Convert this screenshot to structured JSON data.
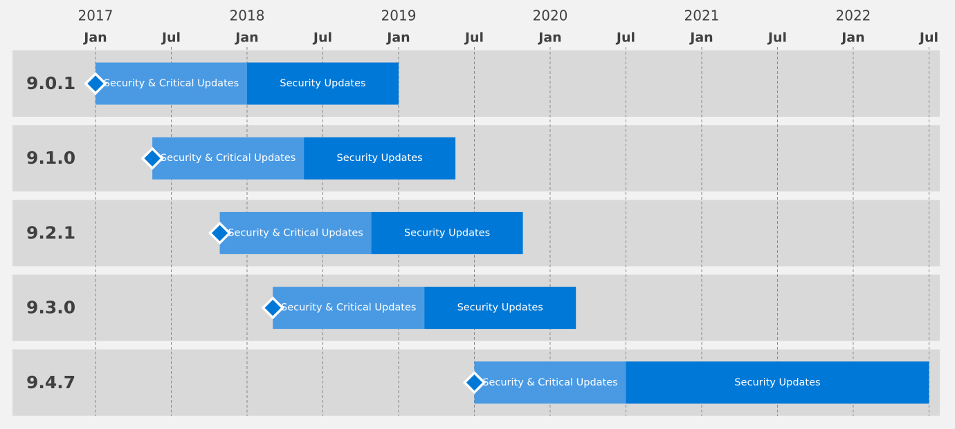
{
  "chart_data": {
    "type": "gantt",
    "xlim": [
      2016.452,
      2022.571
    ],
    "xticks": [
      {
        "value": 2017,
        "label": "Jan"
      },
      {
        "value": 2017.5,
        "label": "Jul"
      },
      {
        "value": 2018,
        "label": "Jan"
      },
      {
        "value": 2018.5,
        "label": "Jul"
      },
      {
        "value": 2019,
        "label": "Jan"
      },
      {
        "value": 2019.5,
        "label": "Jul"
      },
      {
        "value": 2020,
        "label": "Jan"
      },
      {
        "value": 2020.5,
        "label": "Jul"
      },
      {
        "value": 2021,
        "label": "Jan"
      },
      {
        "value": 2021.5,
        "label": "Jul"
      },
      {
        "value": 2022,
        "label": "Jan"
      },
      {
        "value": 2022.5,
        "label": "Jul"
      }
    ],
    "year_ticks": [
      2017,
      2018,
      2019,
      2020,
      2021,
      2022
    ],
    "grid": true,
    "rows": [
      {
        "name": "9.0.1",
        "segments": [
          {
            "label": "Security & Critical Updates",
            "start": 2017.0,
            "end": 2018.0,
            "color": "#4a9ae3"
          },
          {
            "label": "Security Updates",
            "start": 2018.0,
            "end": 2019.0,
            "color": "#0078d7"
          }
        ]
      },
      {
        "name": "9.1.0",
        "segments": [
          {
            "label": "Security & Critical Updates",
            "start": 2017.375,
            "end": 2018.375,
            "color": "#4a9ae3"
          },
          {
            "label": "Security Updates",
            "start": 2018.375,
            "end": 2019.375,
            "color": "#0078d7"
          }
        ]
      },
      {
        "name": "9.2.1",
        "segments": [
          {
            "label": "Security & Critical Updates",
            "start": 2017.82,
            "end": 2018.82,
            "color": "#4a9ae3"
          },
          {
            "label": "Security Updates",
            "start": 2018.82,
            "end": 2019.82,
            "color": "#0078d7"
          }
        ]
      },
      {
        "name": "9.3.0",
        "segments": [
          {
            "label": "Security & Critical Updates",
            "start": 2018.17,
            "end": 2019.17,
            "color": "#4a9ae3"
          },
          {
            "label": "Security Updates",
            "start": 2019.17,
            "end": 2020.17,
            "color": "#0078d7"
          }
        ]
      },
      {
        "name": "9.4.7",
        "segments": [
          {
            "label": "Security & Critical Updates",
            "start": 2019.5,
            "end": 2020.5,
            "color": "#4a9ae3"
          },
          {
            "label": "Security Updates",
            "start": 2020.5,
            "end": 2022.5,
            "color": "#0078d7"
          }
        ]
      }
    ]
  }
}
